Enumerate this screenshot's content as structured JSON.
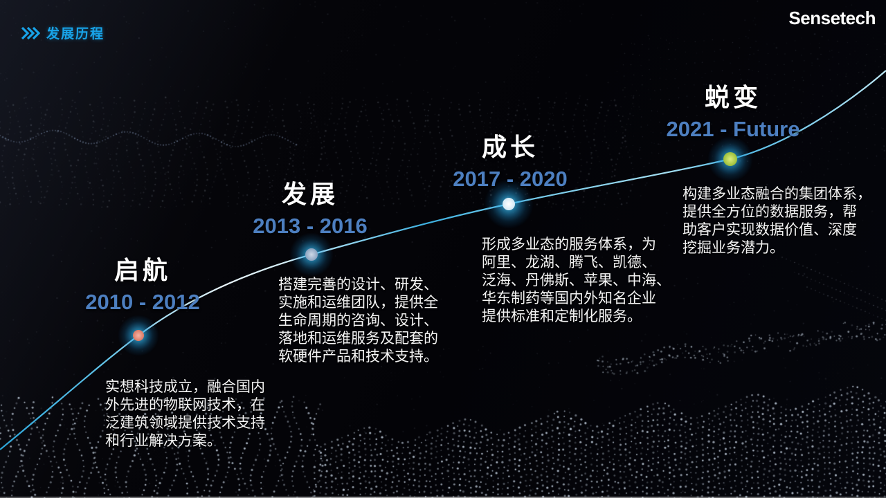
{
  "slide": {
    "header": {
      "title": "发展历程",
      "chevron_icon": "triple-chevron-right"
    },
    "logo": {
      "text": "Sensetech"
    },
    "milestones": [
      {
        "title": "启航",
        "period": "2010 - 2012",
        "description": "实想科技成立，融合国内\n外先进的物联网技术，在\n泛建筑领域提供技术支持\n和行业解决方案。",
        "dot_color": "#ef9080"
      },
      {
        "title": "发展",
        "period": "2013 - 2016",
        "description": "搭建完善的设计、研发、\n实施和运维团队，提供全\n生命周期的咨询、设计、\n落地和运维服务及配套的\n软硬件产品和技术支持。",
        "dot_color": "#aec2d8"
      },
      {
        "title": "成长",
        "period": "2017 - 2020",
        "description": "形成多业态的服务体系，为\n阿里、龙湖、腾飞、凯德、\n泛海、丹佛斯、苹果、中海、\n华东制药等国内外知名企业\n提供标准和定制化服务。",
        "dot_color": "#ffffff"
      },
      {
        "title": "蜕变",
        "period": "2021 - Future",
        "description": "构建多业态融合的集团体系，\n提供全方位的数据服务，帮\n助客户实现数据价值、深度\n挖掘业务潜力。",
        "dot_color": "#b7d84e"
      }
    ],
    "colors": {
      "header_accent": "#18a3e8",
      "period_blue": "#4d7fc0",
      "milestone_title": "#ffffff",
      "line_cyan": "#3fb2e2",
      "glow_cyan": "#2ec0f0",
      "background": "#04040a"
    }
  }
}
